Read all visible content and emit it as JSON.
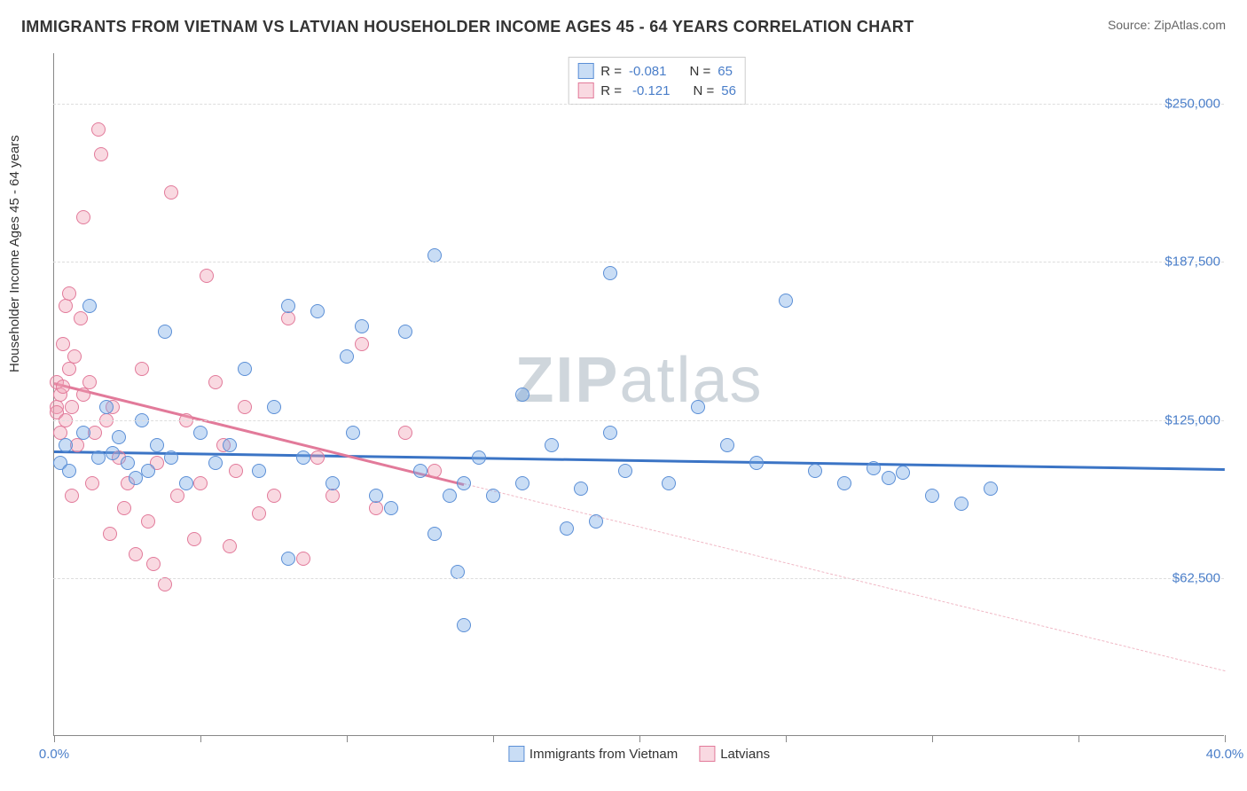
{
  "title": "IMMIGRANTS FROM VIETNAM VS LATVIAN HOUSEHOLDER INCOME AGES 45 - 64 YEARS CORRELATION CHART",
  "source_prefix": "Source: ",
  "source_name": "ZipAtlas.com",
  "watermark_a": "ZIP",
  "watermark_b": "atlas",
  "chart": {
    "type": "scatter",
    "x_min": 0.0,
    "x_max": 40.0,
    "y_min": 0,
    "y_max": 270000,
    "y_gridlines": [
      62500,
      125000,
      187500,
      250000
    ],
    "y_tick_labels": [
      "$62,500",
      "$125,000",
      "$187,500",
      "$250,000"
    ],
    "x_ticks": [
      0,
      5,
      10,
      15,
      20,
      25,
      30,
      35,
      40
    ],
    "x_tick_labels": {
      "0": "0.0%",
      "40": "40.0%"
    },
    "y_label": "Householder Income Ages 45 - 64 years",
    "background_color": "#ffffff",
    "grid_color": "#dddddd",
    "axis_color": "#888888",
    "point_radius": 8,
    "series": {
      "blue": {
        "color_fill": "rgba(120,170,230,0.4)",
        "color_stroke": "#5b8fd6",
        "label": "Immigrants from Vietnam",
        "R": "-0.081",
        "N": "65",
        "trend": {
          "x1": 0,
          "y1": 113000,
          "x2": 40,
          "y2": 106000,
          "color": "#3b74c5"
        },
        "points": [
          [
            0.2,
            108000
          ],
          [
            0.4,
            115000
          ],
          [
            0.5,
            105000
          ],
          [
            1.0,
            120000
          ],
          [
            1.2,
            170000
          ],
          [
            1.5,
            110000
          ],
          [
            1.8,
            130000
          ],
          [
            2.0,
            112000
          ],
          [
            2.2,
            118000
          ],
          [
            2.5,
            108000
          ],
          [
            2.8,
            102000
          ],
          [
            3.0,
            125000
          ],
          [
            3.2,
            105000
          ],
          [
            3.5,
            115000
          ],
          [
            3.8,
            160000
          ],
          [
            4.0,
            110000
          ],
          [
            4.5,
            100000
          ],
          [
            5.0,
            120000
          ],
          [
            5.5,
            108000
          ],
          [
            6.0,
            115000
          ],
          [
            6.5,
            145000
          ],
          [
            7.0,
            105000
          ],
          [
            7.5,
            130000
          ],
          [
            8.0,
            170000
          ],
          [
            8.0,
            70000
          ],
          [
            8.5,
            110000
          ],
          [
            9.0,
            168000
          ],
          [
            9.5,
            100000
          ],
          [
            10.0,
            150000
          ],
          [
            10.2,
            120000
          ],
          [
            10.5,
            162000
          ],
          [
            11.0,
            95000
          ],
          [
            11.5,
            90000
          ],
          [
            12.0,
            160000
          ],
          [
            12.5,
            105000
          ],
          [
            13.0,
            190000
          ],
          [
            13.0,
            80000
          ],
          [
            13.5,
            95000
          ],
          [
            13.8,
            65000
          ],
          [
            14.0,
            100000
          ],
          [
            14.0,
            44000
          ],
          [
            14.5,
            110000
          ],
          [
            15.0,
            95000
          ],
          [
            16.0,
            100000
          ],
          [
            16.0,
            135000
          ],
          [
            17.0,
            115000
          ],
          [
            17.5,
            82000
          ],
          [
            18.0,
            98000
          ],
          [
            18.5,
            85000
          ],
          [
            19.0,
            120000
          ],
          [
            19.0,
            183000
          ],
          [
            19.5,
            105000
          ],
          [
            21.0,
            100000
          ],
          [
            22.0,
            130000
          ],
          [
            23.0,
            115000
          ],
          [
            24.0,
            108000
          ],
          [
            25.0,
            172000
          ],
          [
            26.0,
            105000
          ],
          [
            27.0,
            100000
          ],
          [
            28.0,
            106000
          ],
          [
            28.5,
            102000
          ],
          [
            29.0,
            104000
          ],
          [
            30.0,
            95000
          ],
          [
            31.0,
            92000
          ],
          [
            32.0,
            98000
          ]
        ]
      },
      "pink": {
        "color_fill": "rgba(240,160,180,0.4)",
        "color_stroke": "#e27a9a",
        "label": "Latvians",
        "R": "-0.121",
        "N": "56",
        "trend_solid": {
          "x1": 0,
          "y1": 140000,
          "x2": 14,
          "y2": 100000,
          "color": "#e27a9a"
        },
        "trend_dash": {
          "x1": 14,
          "y1": 100000,
          "x2": 40,
          "y2": 26000,
          "color": "#f0b8c5"
        },
        "points": [
          [
            0.1,
            140000
          ],
          [
            0.1,
            130000
          ],
          [
            0.1,
            128000
          ],
          [
            0.2,
            135000
          ],
          [
            0.2,
            120000
          ],
          [
            0.3,
            155000
          ],
          [
            0.3,
            138000
          ],
          [
            0.4,
            170000
          ],
          [
            0.4,
            125000
          ],
          [
            0.5,
            145000
          ],
          [
            0.5,
            175000
          ],
          [
            0.6,
            130000
          ],
          [
            0.6,
            95000
          ],
          [
            0.7,
            150000
          ],
          [
            0.8,
            115000
          ],
          [
            0.9,
            165000
          ],
          [
            1.0,
            135000
          ],
          [
            1.0,
            205000
          ],
          [
            1.2,
            140000
          ],
          [
            1.3,
            100000
          ],
          [
            1.4,
            120000
          ],
          [
            1.5,
            240000
          ],
          [
            1.6,
            230000
          ],
          [
            1.8,
            125000
          ],
          [
            1.9,
            80000
          ],
          [
            2.0,
            130000
          ],
          [
            2.2,
            110000
          ],
          [
            2.4,
            90000
          ],
          [
            2.5,
            100000
          ],
          [
            2.8,
            72000
          ],
          [
            3.0,
            145000
          ],
          [
            3.2,
            85000
          ],
          [
            3.4,
            68000
          ],
          [
            3.5,
            108000
          ],
          [
            3.8,
            60000
          ],
          [
            4.0,
            215000
          ],
          [
            4.2,
            95000
          ],
          [
            4.5,
            125000
          ],
          [
            4.8,
            78000
          ],
          [
            5.0,
            100000
          ],
          [
            5.2,
            182000
          ],
          [
            5.5,
            140000
          ],
          [
            5.8,
            115000
          ],
          [
            6.0,
            75000
          ],
          [
            6.2,
            105000
          ],
          [
            6.5,
            130000
          ],
          [
            7.0,
            88000
          ],
          [
            7.5,
            95000
          ],
          [
            8.0,
            165000
          ],
          [
            8.5,
            70000
          ],
          [
            9.0,
            110000
          ],
          [
            9.5,
            95000
          ],
          [
            10.5,
            155000
          ],
          [
            11.0,
            90000
          ],
          [
            12.0,
            120000
          ],
          [
            13.0,
            105000
          ]
        ]
      }
    },
    "legend_stats": {
      "r_label": "R =",
      "n_label": "N ="
    }
  }
}
